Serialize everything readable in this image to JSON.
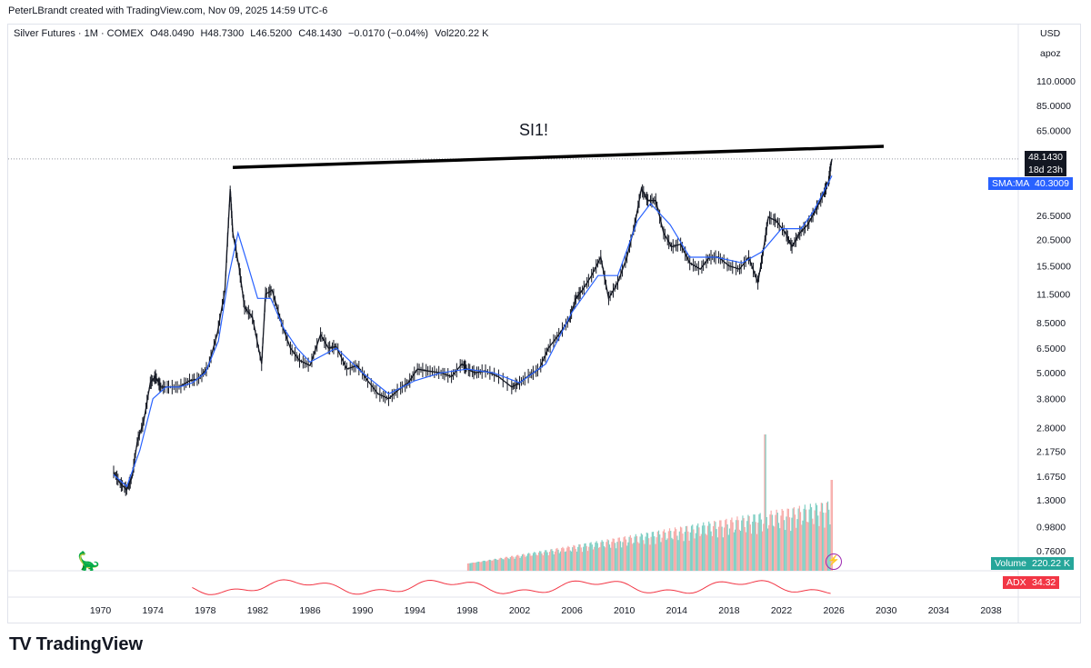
{
  "header": {
    "credit": "PeterLBrandt created with TradingView.com, Nov 09, 2025 14:59 UTC-6"
  },
  "legend": {
    "instrument": "Silver Futures · 1M · COMEX",
    "open": "O48.0490",
    "high": "H48.7300",
    "low": "L46.5200",
    "close": "C48.1430",
    "change": "−0.0170 (−0.04%)",
    "volume": "Vol220.22 K"
  },
  "symbol_watermark": "SI1!",
  "price_axis": {
    "currency": "USD",
    "scale_mode": "apoz",
    "ticks": [
      "110.0000",
      "85.0000",
      "65.0000",
      "26.5000",
      "20.5000",
      "15.5000",
      "11.5000",
      "8.5000",
      "6.5000",
      "5.0000",
      "3.8000",
      "2.8000",
      "2.1750",
      "1.6750",
      "1.3000",
      "0.9800",
      "0.7600"
    ]
  },
  "tags": {
    "last_price": "48.1430",
    "countdown": "18d 23h",
    "sma_label": "SMA:MA",
    "sma_value": "40.3009",
    "volume_label": "Volume",
    "volume_value": "220.22 K",
    "adx_label": "ADX",
    "adx_value": "34.32"
  },
  "time_axis": {
    "ticks": [
      "1970",
      "1974",
      "1978",
      "1982",
      "1986",
      "1990",
      "1994",
      "1998",
      "2002",
      "2006",
      "2010",
      "2014",
      "2018",
      "2022",
      "2026",
      "2030",
      "2034",
      "2038"
    ]
  },
  "brand": {
    "name": "TradingView",
    "logo_text": "TV"
  },
  "colors": {
    "price_bars": "#131722",
    "sma": "#2962ff",
    "adx": "#f23645",
    "volume_up": "#7fcfc4",
    "volume_down": "#f7a9a7",
    "trendline": "#000000",
    "volume_tag": "#26a69a",
    "adx_tag": "#f23645",
    "sma_tag": "#2962ff",
    "last_tag": "#131722"
  },
  "chart_data": {
    "type": "line",
    "title": "SI1!",
    "xlabel": "",
    "ylabel": "",
    "y_scale": "log",
    "ylim": [
      0.76,
      110
    ],
    "x_range": [
      1970,
      2038
    ],
    "grid": false,
    "series": [
      {
        "name": "",
        "x": [
          1971.0,
          1971.5,
          1972.0,
          1972.4,
          1972.8,
          1973.3,
          1973.8,
          1974.2,
          1974.6,
          1975.2,
          1976.0,
          1976.8,
          1977.5,
          1978.2,
          1978.9,
          1979.5,
          1979.9,
          1980.1,
          1980.6,
          1981.0,
          1981.6,
          1982.3,
          1982.6,
          1983.1,
          1983.8,
          1984.5,
          1985.2,
          1986.0,
          1986.8,
          1987.4,
          1988.0,
          1988.8,
          1989.6,
          1990.4,
          1991.2,
          1992.0,
          1992.8,
          1993.5,
          1994.2,
          1995.0,
          1996.0,
          1996.8,
          1997.6,
          1998.0,
          1998.6,
          1999.4,
          2000.4,
          2001.4,
          2002.0,
          2002.8,
          2003.5,
          2004.2,
          2005.0,
          2005.8,
          2006.3,
          2006.8,
          2007.5,
          2008.2,
          2008.8,
          2009.5,
          2010.2,
          2010.8,
          2011.3,
          2011.8,
          2012.4,
          2013.0,
          2013.6,
          2014.3,
          2015.0,
          2015.8,
          2016.5,
          2017.2,
          2018.0,
          2018.8,
          2019.5,
          2020.2,
          2020.6,
          2021.0,
          2021.6,
          2022.3,
          2022.8,
          2023.4,
          2024.0,
          2024.6,
          2025.2,
          2025.6,
          2025.85
        ],
        "values": [
          1.75,
          1.55,
          1.45,
          1.65,
          2.4,
          3.0,
          4.5,
          4.8,
          4.3,
          4.3,
          4.3,
          4.6,
          4.7,
          5.3,
          7.5,
          12,
          35,
          22,
          15,
          10,
          9,
          5.5,
          11.5,
          12,
          8.5,
          6.5,
          5.7,
          5.4,
          7.5,
          6.5,
          6.6,
          5.2,
          5.4,
          4.6,
          4.0,
          3.8,
          4.2,
          4.5,
          5.2,
          5.1,
          5.0,
          4.8,
          5.5,
          5.2,
          5.0,
          5.1,
          4.8,
          4.3,
          4.5,
          4.9,
          5.2,
          6.5,
          7.5,
          8.8,
          11,
          12,
          14,
          17,
          11,
          13,
          17,
          24,
          35,
          31,
          31,
          22,
          19,
          19.5,
          16,
          15,
          17,
          17,
          15.5,
          15,
          17,
          13,
          18,
          26,
          25,
          22,
          19,
          22,
          24,
          28,
          33,
          38,
          48.14
        ]
      },
      {
        "name": "",
        "x": [
          1971.0,
          1972.0,
          1973.0,
          1974.0,
          1975.0,
          1976.0,
          1977.0,
          1978.0,
          1979.0,
          1979.8,
          1980.5,
          1981.2,
          1982.0,
          1983.0,
          1984.0,
          1985.0,
          1986.0,
          1988.0,
          1990.0,
          1992.0,
          1994.0,
          1996.0,
          1998.0,
          2000.0,
          2002.0,
          2004.0,
          2006.0,
          2008.0,
          2009.5,
          2011.0,
          2012.0,
          2013.5,
          2015.0,
          2017.0,
          2019.0,
          2020.5,
          2022.0,
          2023.5,
          2024.5,
          2025.85
        ],
        "values": [
          1.7,
          1.5,
          2.2,
          3.8,
          4.3,
          4.3,
          4.5,
          5.0,
          7.0,
          14,
          22,
          16,
          11,
          11,
          8,
          6.5,
          5.6,
          6.5,
          5.0,
          4.0,
          4.6,
          5.0,
          5.2,
          5.0,
          4.5,
          5.5,
          9.5,
          14,
          14,
          25,
          30,
          24,
          17,
          17,
          16,
          18,
          23,
          23,
          28,
          40.3
        ]
      }
    ],
    "volume_series": {
      "x_range": [
        1998.0,
        2025.85
      ],
      "peak_value_year": 2020.7
    },
    "trendline": {
      "x": [
        1980.1,
        2025.4
      ],
      "values": [
        44,
        55
      ]
    },
    "annotations": [
      "SI1!"
    ]
  }
}
